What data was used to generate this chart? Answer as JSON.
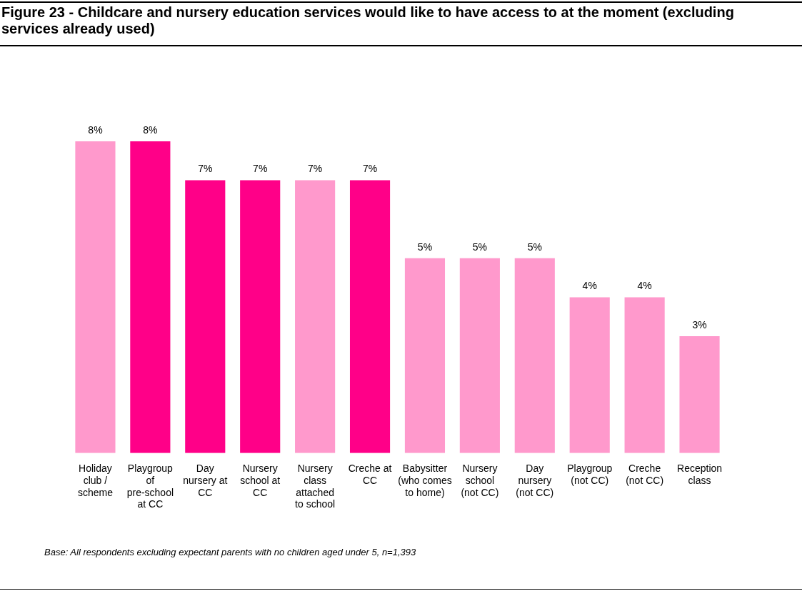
{
  "chart_data": {
    "type": "bar",
    "title": "Figure 23 - Childcare and nursery education services would like to have access to at the moment (excluding services already used)",
    "categories": [
      "Holiday club / scheme",
      "Playgroup of pre-school at CC",
      "Day nursery at CC",
      "Nursery school at CC",
      "Nursery class attached to school",
      "Creche at CC",
      "Babysitter (who comes to home)",
      "Nursery school (not CC)",
      "Day nursery (not CC)",
      "Playgroup (not CC)",
      "Creche (not CC)",
      "Reception class"
    ],
    "values": [
      8,
      8,
      7,
      7,
      7,
      7,
      5,
      5,
      5,
      4,
      4,
      3
    ],
    "colors": [
      "#ff99cc",
      "#ff0088",
      "#ff0088",
      "#ff0088",
      "#ff99cc",
      "#ff0088",
      "#ff99cc",
      "#ff99cc",
      "#ff99cc",
      "#ff99cc",
      "#ff99cc",
      "#ff99cc"
    ],
    "value_labels": [
      "8%",
      "8%",
      "7%",
      "7%",
      "7%",
      "7%",
      "5%",
      "5%",
      "5%",
      "4%",
      "4%",
      "3%"
    ],
    "tick_labels": "x",
    "annotations": [
      "Base: All respondents excluding expectant parents with no children aged under 5, n=1,393"
    ]
  }
}
